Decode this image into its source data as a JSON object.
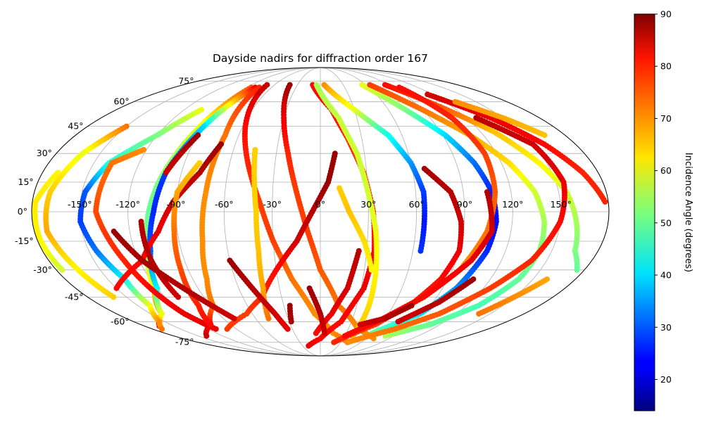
{
  "chart_data": {
    "type": "scatter",
    "projection": "mollweide",
    "title": "Dayside nadirs for diffraction order 167",
    "xlabel": "",
    "ylabel": "",
    "xlim": [
      -180,
      180
    ],
    "ylim": [
      -90,
      90
    ],
    "grid": true,
    "x_ticks": [
      -150,
      -120,
      -90,
      -60,
      -30,
      0,
      30,
      60,
      90,
      120,
      150
    ],
    "x_tick_labels": [
      "-150°",
      "-120°",
      "-90°",
      "-60°",
      "-30°",
      "0°",
      "30°",
      "60°",
      "90°",
      "120°",
      "150°"
    ],
    "y_ticks": [
      -75,
      -60,
      -45,
      -30,
      -15,
      0,
      15,
      30,
      45,
      60,
      75
    ],
    "y_tick_labels": [
      "-75°",
      "-60°",
      "-45°",
      "-30°",
      "-15°",
      "0°",
      "15°",
      "30°",
      "45°",
      "60°",
      "75°"
    ],
    "colorbar": {
      "label": "Incidence Angle (degrees)",
      "colormap": "jet",
      "range": [
        14,
        90
      ],
      "ticks": [
        20,
        30,
        40,
        50,
        60,
        70,
        80,
        90
      ],
      "tick_labels": [
        "20",
        "30",
        "40",
        "50",
        "60",
        "70",
        "80",
        "90"
      ]
    },
    "color_value": "incidence angle (degrees)",
    "tracks": [
      {
        "points": [
          [
            -85,
            70,
            75
          ],
          [
            -93,
            45,
            60
          ],
          [
            -103,
            15,
            52
          ],
          [
            -107,
            0,
            50
          ],
          [
            -112,
            -20,
            53
          ],
          [
            -122,
            -40,
            63
          ],
          [
            -140,
            -55,
            72
          ],
          [
            -165,
            -63,
            80
          ]
        ]
      },
      {
        "points": [
          [
            -80,
            70,
            82
          ],
          [
            -90,
            45,
            40
          ],
          [
            -100,
            20,
            28
          ],
          [
            -104,
            0,
            26
          ],
          [
            -110,
            -20,
            30
          ],
          [
            -120,
            -40,
            42
          ],
          [
            -140,
            -55,
            60
          ],
          [
            -170,
            -65,
            72
          ]
        ]
      },
      {
        "points": [
          [
            -75,
            70,
            78
          ],
          [
            -70,
            40,
            72
          ],
          [
            -72,
            10,
            70
          ],
          [
            -75,
            -15,
            70
          ],
          [
            -80,
            -35,
            70
          ],
          [
            -88,
            -50,
            72
          ],
          [
            -110,
            -62,
            80
          ],
          [
            -140,
            -70,
            84
          ]
        ]
      },
      {
        "points": [
          [
            -105,
            55,
            60
          ],
          [
            -120,
            40,
            52
          ],
          [
            -140,
            25,
            45
          ],
          [
            -148,
            10,
            30
          ],
          [
            -150,
            -5,
            28
          ],
          [
            -145,
            -20,
            32
          ],
          [
            -138,
            -35,
            42
          ],
          [
            -140,
            -50,
            60
          ],
          [
            -155,
            -60,
            70
          ]
        ]
      },
      {
        "points": [
          [
            -150,
            45,
            72
          ],
          [
            -162,
            30,
            60
          ],
          [
            -170,
            10,
            65
          ],
          [
            -172,
            -10,
            68
          ],
          [
            -165,
            -30,
            62
          ],
          [
            -160,
            -45,
            65
          ]
        ]
      },
      {
        "points": [
          [
            -170,
            20,
            62
          ],
          [
            -178,
            5,
            63
          ],
          [
            -178,
            -15,
            62
          ],
          [
            -176,
            -30,
            58
          ]
        ]
      },
      {
        "points": [
          [
            -122,
            32,
            70
          ],
          [
            -138,
            25,
            72
          ],
          [
            -140,
            0,
            75
          ],
          [
            -130,
            -25,
            78
          ],
          [
            -125,
            -40,
            80
          ],
          [
            -120,
            -55,
            82
          ],
          [
            -112,
            -65,
            82
          ]
        ]
      },
      {
        "points": [
          [
            -70,
            72,
            85
          ],
          [
            -58,
            45,
            80
          ],
          [
            -48,
            25,
            78
          ],
          [
            -38,
            5,
            76
          ],
          [
            -30,
            -15,
            76
          ],
          [
            -20,
            -35,
            72
          ],
          [
            -5,
            -55,
            70
          ],
          [
            15,
            -68,
            70
          ],
          [
            40,
            -75,
            72
          ]
        ]
      },
      {
        "points": [
          [
            -40,
            72,
            88
          ],
          [
            -30,
            50,
            82
          ],
          [
            -22,
            30,
            78
          ],
          [
            -15,
            10,
            76
          ],
          [
            -8,
            -10,
            76
          ],
          [
            0,
            -30,
            74
          ],
          [
            15,
            -50,
            72
          ],
          [
            40,
            -65,
            70
          ],
          [
            70,
            -72,
            70
          ]
        ]
      },
      {
        "points": [
          [
            -10,
            72,
            80
          ],
          [
            10,
            55,
            80
          ],
          [
            20,
            38,
            78
          ],
          [
            28,
            20,
            76
          ],
          [
            33,
            0,
            78
          ],
          [
            35,
            -20,
            80
          ],
          [
            32,
            -40,
            82
          ],
          [
            20,
            -60,
            80
          ],
          [
            0,
            -72,
            80
          ],
          [
            -20,
            -78,
            82
          ]
        ]
      },
      {
        "points": [
          [
            -5,
            72,
            55
          ],
          [
            15,
            50,
            57
          ],
          [
            25,
            30,
            58
          ],
          [
            30,
            10,
            58
          ],
          [
            35,
            -10,
            60
          ],
          [
            38,
            -30,
            62
          ],
          [
            40,
            -50,
            64
          ],
          [
            40,
            -70,
            66
          ]
        ]
      },
      {
        "points": [
          [
            5,
            72,
            70
          ],
          [
            30,
            55,
            60
          ],
          [
            50,
            40,
            44
          ],
          [
            60,
            25,
            35
          ],
          [
            65,
            10,
            28
          ],
          [
            65,
            -5,
            25
          ],
          [
            65,
            -20,
            27
          ]
        ]
      },
      {
        "points": [
          [
            55,
            72,
            60
          ],
          [
            75,
            55,
            52
          ],
          [
            92,
            40,
            40
          ],
          [
            102,
            25,
            32
          ],
          [
            108,
            10,
            26
          ],
          [
            110,
            -5,
            24
          ],
          [
            108,
            -20,
            26
          ],
          [
            100,
            -40,
            34
          ],
          [
            88,
            -55,
            40
          ],
          [
            60,
            -68,
            50
          ]
        ]
      },
      {
        "points": [
          [
            65,
            72,
            76
          ],
          [
            90,
            55,
            72
          ],
          [
            110,
            40,
            68
          ],
          [
            125,
            25,
            64
          ],
          [
            135,
            10,
            58
          ],
          [
            140,
            -5,
            55
          ],
          [
            142,
            -20,
            52
          ],
          [
            140,
            -35,
            50
          ],
          [
            130,
            -50,
            48
          ],
          [
            110,
            -62,
            50
          ],
          [
            80,
            -70,
            55
          ]
        ]
      },
      {
        "points": [
          [
            85,
            72,
            80
          ],
          [
            110,
            56,
            74
          ],
          [
            130,
            42,
            66
          ],
          [
            145,
            25,
            62
          ],
          [
            155,
            10,
            58
          ],
          [
            160,
            -5,
            55
          ],
          [
            165,
            -20,
            52
          ],
          [
            175,
            -30,
            50
          ]
        ]
      },
      {
        "points": [
          [
            115,
            65,
            84
          ],
          [
            140,
            50,
            82
          ],
          [
            158,
            35,
            80
          ],
          [
            170,
            20,
            78
          ],
          [
            178,
            5,
            78
          ]
        ]
      },
      {
        "points": [
          [
            128,
            50,
            86
          ],
          [
            150,
            35,
            84
          ],
          [
            155,
            15,
            82
          ],
          [
            150,
            -5,
            80
          ],
          [
            140,
            -25,
            78
          ],
          [
            125,
            -40,
            76
          ],
          [
            105,
            -55,
            74
          ],
          [
            80,
            -65,
            72
          ],
          [
            40,
            -75,
            70
          ]
        ]
      },
      {
        "points": [
          [
            97,
            70,
            80
          ],
          [
            108,
            50,
            78
          ],
          [
            112,
            30,
            76
          ],
          [
            110,
            10,
            74
          ],
          [
            105,
            -10,
            72
          ],
          [
            95,
            -30,
            70
          ],
          [
            80,
            -45,
            68
          ],
          [
            60,
            -58,
            66
          ],
          [
            30,
            -70,
            64
          ]
        ]
      },
      {
        "points": [
          [
            68,
            22,
            87
          ],
          [
            82,
            10,
            86
          ],
          [
            88,
            -5,
            84
          ],
          [
            90,
            -20,
            82
          ],
          [
            85,
            -35,
            80
          ],
          [
            75,
            -48,
            78
          ],
          [
            55,
            -62,
            76
          ],
          [
            20,
            -75,
            78
          ]
        ]
      },
      {
        "points": [
          [
            105,
            10,
            86
          ],
          [
            108,
            -10,
            84
          ],
          [
            100,
            -25,
            82
          ],
          [
            80,
            -45,
            80
          ],
          [
            55,
            -60,
            80
          ],
          [
            30,
            -70,
            80
          ]
        ]
      },
      {
        "points": [
          [
            10,
            30,
            88
          ],
          [
            5,
            15,
            88
          ],
          [
            -5,
            0,
            86
          ],
          [
            -15,
            -15,
            84
          ],
          [
            -30,
            -30,
            80
          ],
          [
            -45,
            -45,
            78
          ],
          [
            -65,
            -55,
            76
          ],
          [
            -100,
            -65,
            76
          ]
        ]
      },
      {
        "points": [
          [
            -70,
            35,
            88
          ],
          [
            -78,
            20,
            86
          ],
          [
            -92,
            5,
            84
          ],
          [
            -102,
            -10,
            82
          ],
          [
            -118,
            -25,
            80
          ],
          [
            -150,
            -40,
            80
          ]
        ]
      },
      {
        "points": [
          [
            -90,
            40,
            88
          ],
          [
            -95,
            30,
            86
          ],
          [
            -100,
            20,
            84
          ]
        ]
      },
      {
        "points": [
          [
            -45,
            32,
            65
          ],
          [
            -42,
            15,
            65
          ],
          [
            -40,
            0,
            65
          ],
          [
            -40,
            -20,
            66
          ],
          [
            -42,
            -40,
            68
          ],
          [
            -48,
            -58,
            72
          ]
        ]
      },
      {
        "points": [
          [
            -80,
            25,
            65
          ],
          [
            -90,
            10,
            68
          ],
          [
            -92,
            -10,
            72
          ],
          [
            -95,
            -30,
            75
          ],
          [
            -100,
            -50,
            78
          ],
          [
            -110,
            -62,
            80
          ]
        ]
      },
      {
        "points": [
          [
            -112,
            -5,
            86
          ],
          [
            -112,
            -25,
            86
          ],
          [
            -110,
            -45,
            84
          ]
        ]
      },
      {
        "points": [
          [
            -130,
            -10,
            88
          ],
          [
            -118,
            -25,
            87
          ],
          [
            -95,
            -45,
            86
          ],
          [
            -80,
            -58,
            84
          ]
        ]
      },
      {
        "points": [
          [
            -25,
            -50,
            88
          ],
          [
            -28,
            -60,
            87
          ]
        ]
      },
      {
        "points": [
          [
            25,
            -20,
            86
          ],
          [
            20,
            -40,
            84
          ],
          [
            10,
            -55,
            82
          ],
          [
            -5,
            -68,
            80
          ]
        ]
      },
      {
        "points": [
          [
            -8,
            -40,
            88
          ],
          [
            0,
            -55,
            86
          ],
          [
            5,
            -68,
            84
          ]
        ]
      },
      {
        "points": [
          [
            -60,
            -25,
            88
          ],
          [
            -50,
            -40,
            86
          ],
          [
            -40,
            -55,
            84
          ],
          [
            -35,
            -65,
            82
          ]
        ]
      },
      {
        "points": [
          [
            12,
            12,
            65
          ],
          [
            18,
            0,
            66
          ],
          [
            28,
            -15,
            64
          ],
          [
            35,
            -30,
            62
          ]
        ]
      },
      {
        "points": [
          [
            75,
            -50,
            88
          ],
          [
            60,
            -58,
            86
          ],
          [
            40,
            -62,
            84
          ]
        ]
      },
      {
        "points": [
          [
            108,
            -35,
            88
          ],
          [
            95,
            -48,
            86
          ],
          [
            75,
            -60,
            84
          ]
        ]
      },
      {
        "points": [
          [
            160,
            -35,
            68
          ],
          [
            150,
            -45,
            70
          ],
          [
            140,
            -55,
            72
          ]
        ]
      },
      {
        "points": [
          [
            130,
            60,
            70
          ],
          [
            150,
            50,
            68
          ],
          [
            165,
            40,
            66
          ]
        ]
      }
    ]
  }
}
